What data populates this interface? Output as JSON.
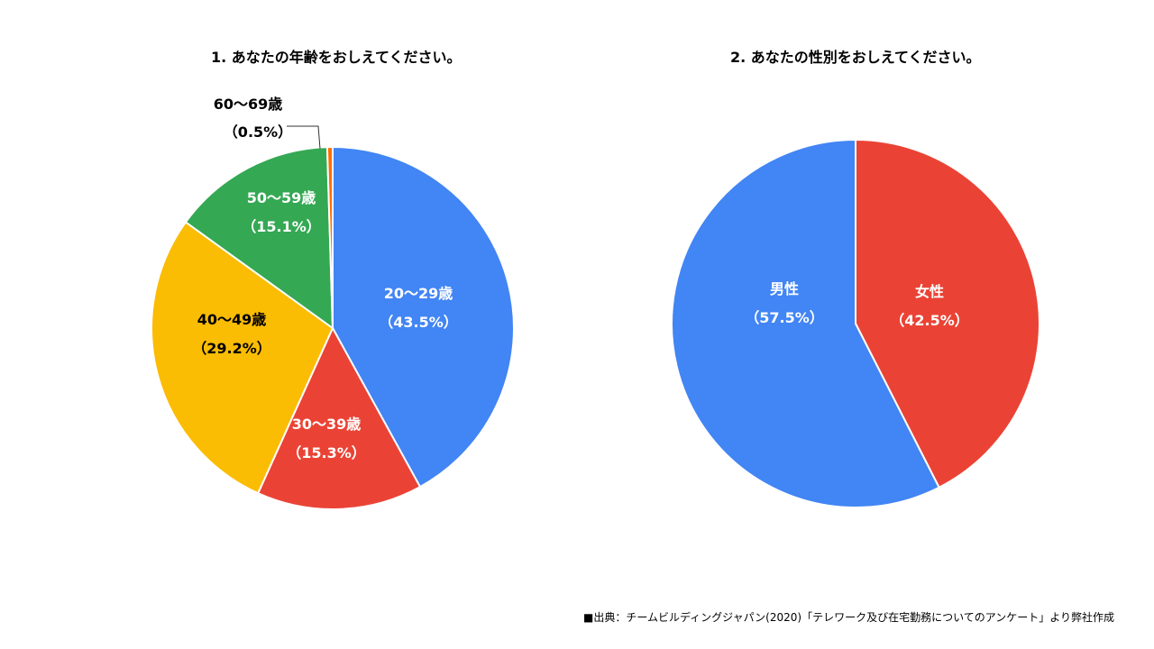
{
  "chart_data": [
    {
      "type": "pie",
      "title": "1. あなたの年齢をおしえてください。",
      "slices": [
        {
          "label": "20〜29歳",
          "value": 43.5,
          "display": "（43.5%）",
          "color": "#4285F4",
          "text_color": "#ffffff"
        },
        {
          "label": "30〜39歳",
          "value": 15.3,
          "display": "（15.3%）",
          "color": "#EA4335",
          "text_color": "#ffffff"
        },
        {
          "label": "40〜49歳",
          "value": 29.2,
          "display": "（29.2%）",
          "color": "#FBBC04",
          "text_color": "#000000"
        },
        {
          "label": "50〜59歳",
          "value": 15.1,
          "display": "（15.1%）",
          "color": "#34A853",
          "text_color": "#ffffff"
        },
        {
          "label": "60〜69歳",
          "value": 0.5,
          "display": "（0.5%）",
          "color": "#FF6D01",
          "text_color": "#000000"
        }
      ]
    },
    {
      "type": "pie",
      "title": "2. あなたの性別をおしえてください。",
      "slices": [
        {
          "label": "女性",
          "value": 42.5,
          "display": "（42.5%）",
          "color": "#EA4335",
          "text_color": "#ffffff"
        },
        {
          "label": "男性",
          "value": 57.5,
          "display": "（57.5%）",
          "color": "#4285F4",
          "text_color": "#ffffff"
        }
      ]
    }
  ],
  "source": "■出典：チームビルディングジャパン(2020)「テレワーク及び在宅勤務についてのアンケート」より弊社作成"
}
